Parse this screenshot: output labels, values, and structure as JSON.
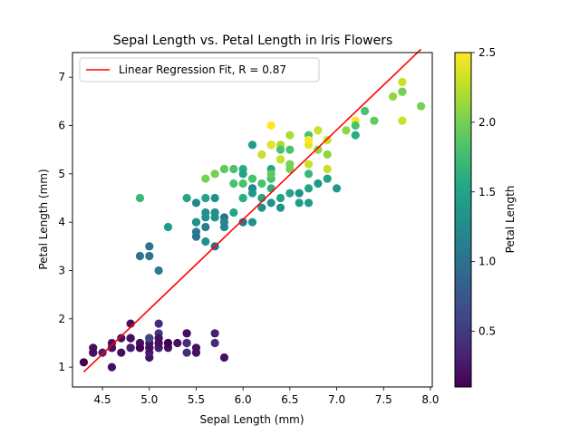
{
  "chart_data": {
    "type": "scatter",
    "title": "Sepal Length vs. Petal Length in Iris Flowers",
    "xlabel": "Sepal Length (mm)",
    "ylabel": "Petal Length (mm)",
    "xlim": [
      4.18,
      8.02
    ],
    "ylim": [
      0.59,
      7.51
    ],
    "xticks": [
      4.5,
      5.0,
      5.5,
      6.0,
      6.5,
      7.0,
      7.5,
      8.0
    ],
    "xtick_labels": [
      "4.5",
      "5.0",
      "5.5",
      "6.0",
      "6.5",
      "7.0",
      "7.5",
      "8.0"
    ],
    "yticks": [
      1,
      2,
      3,
      4,
      5,
      6,
      7
    ],
    "ytick_labels": [
      "1",
      "2",
      "3",
      "4",
      "5",
      "6",
      "7"
    ],
    "grid": false,
    "legend": {
      "placement": "top-left",
      "entries": [
        "Linear Regression Fit, R = 0.87"
      ]
    },
    "regression_line": {
      "name": "Linear Regression Fit, R = 0.87",
      "color": "#ff0000",
      "x": [
        4.3,
        7.9
      ],
      "y": [
        0.9,
        7.58
      ]
    },
    "colorbar": {
      "label": "Petal Length",
      "range": [
        0.1,
        2.5
      ],
      "ticks": [
        0.5,
        1.0,
        1.5,
        2.0,
        2.5
      ],
      "tick_labels": [
        "0.5",
        "1.0",
        "1.5",
        "2.0",
        "2.5"
      ],
      "colormap": "viridis"
    },
    "points": [
      [
        5.1,
        1.4,
        0.2
      ],
      [
        4.9,
        1.4,
        0.2
      ],
      [
        4.7,
        1.3,
        0.2
      ],
      [
        4.6,
        1.5,
        0.2
      ],
      [
        5.0,
        1.4,
        0.2
      ],
      [
        5.4,
        1.7,
        0.4
      ],
      [
        4.6,
        1.4,
        0.3
      ],
      [
        5.0,
        1.5,
        0.2
      ],
      [
        4.4,
        1.4,
        0.2
      ],
      [
        4.9,
        1.5,
        0.1
      ],
      [
        5.4,
        1.5,
        0.2
      ],
      [
        4.8,
        1.6,
        0.2
      ],
      [
        4.8,
        1.4,
        0.1
      ],
      [
        4.3,
        1.1,
        0.1
      ],
      [
        5.8,
        1.2,
        0.2
      ],
      [
        5.7,
        1.5,
        0.4
      ],
      [
        5.4,
        1.3,
        0.4
      ],
      [
        5.1,
        1.4,
        0.3
      ],
      [
        5.7,
        1.7,
        0.3
      ],
      [
        5.1,
        1.5,
        0.3
      ],
      [
        5.4,
        1.7,
        0.2
      ],
      [
        5.1,
        1.5,
        0.4
      ],
      [
        4.6,
        1.0,
        0.2
      ],
      [
        5.1,
        1.7,
        0.5
      ],
      [
        4.8,
        1.9,
        0.2
      ],
      [
        5.0,
        1.6,
        0.2
      ],
      [
        5.0,
        1.6,
        0.4
      ],
      [
        5.2,
        1.5,
        0.2
      ],
      [
        5.2,
        1.4,
        0.2
      ],
      [
        4.7,
        1.6,
        0.2
      ],
      [
        4.8,
        1.6,
        0.2
      ],
      [
        5.4,
        1.5,
        0.4
      ],
      [
        5.2,
        1.5,
        0.1
      ],
      [
        5.5,
        1.4,
        0.2
      ],
      [
        4.9,
        1.5,
        0.2
      ],
      [
        5.0,
        1.2,
        0.2
      ],
      [
        5.5,
        1.3,
        0.2
      ],
      [
        4.9,
        1.4,
        0.1
      ],
      [
        4.4,
        1.3,
        0.2
      ],
      [
        5.1,
        1.5,
        0.2
      ],
      [
        5.0,
        1.3,
        0.3
      ],
      [
        4.5,
        1.3,
        0.3
      ],
      [
        4.4,
        1.3,
        0.2
      ],
      [
        5.0,
        1.6,
        0.6
      ],
      [
        5.1,
        1.9,
        0.4
      ],
      [
        4.8,
        1.4,
        0.3
      ],
      [
        5.1,
        1.6,
        0.2
      ],
      [
        4.6,
        1.4,
        0.2
      ],
      [
        5.3,
        1.5,
        0.2
      ],
      [
        5.0,
        1.4,
        0.2
      ],
      [
        7.0,
        4.7,
        1.4
      ],
      [
        6.4,
        4.5,
        1.5
      ],
      [
        6.9,
        4.9,
        1.5
      ],
      [
        5.5,
        4.0,
        1.3
      ],
      [
        6.5,
        4.6,
        1.5
      ],
      [
        5.7,
        4.5,
        1.3
      ],
      [
        6.3,
        4.7,
        1.6
      ],
      [
        4.9,
        3.3,
        1.0
      ],
      [
        6.6,
        4.6,
        1.3
      ],
      [
        5.2,
        3.9,
        1.4
      ],
      [
        5.0,
        3.5,
        1.0
      ],
      [
        5.9,
        4.2,
        1.5
      ],
      [
        6.0,
        4.0,
        1.0
      ],
      [
        6.1,
        4.7,
        1.4
      ],
      [
        5.6,
        3.6,
        1.3
      ],
      [
        6.7,
        4.4,
        1.4
      ],
      [
        5.6,
        4.5,
        1.5
      ],
      [
        5.8,
        4.1,
        1.0
      ],
      [
        6.2,
        4.5,
        1.5
      ],
      [
        5.6,
        3.9,
        1.1
      ],
      [
        5.9,
        4.8,
        1.8
      ],
      [
        6.1,
        4.0,
        1.3
      ],
      [
        6.3,
        4.9,
        1.5
      ],
      [
        6.1,
        4.7,
        1.2
      ],
      [
        6.4,
        4.3,
        1.3
      ],
      [
        6.6,
        4.4,
        1.4
      ],
      [
        6.8,
        4.8,
        1.4
      ],
      [
        6.7,
        5.0,
        1.7
      ],
      [
        6.0,
        4.5,
        1.5
      ],
      [
        5.7,
        3.5,
        1.0
      ],
      [
        5.5,
        3.8,
        1.1
      ],
      [
        5.5,
        3.7,
        1.0
      ],
      [
        5.8,
        3.9,
        1.2
      ],
      [
        6.0,
        5.1,
        1.6
      ],
      [
        5.4,
        4.5,
        1.5
      ],
      [
        6.0,
        4.5,
        1.6
      ],
      [
        6.7,
        4.7,
        1.5
      ],
      [
        6.3,
        4.4,
        1.3
      ],
      [
        5.6,
        4.1,
        1.3
      ],
      [
        5.5,
        4.0,
        1.3
      ],
      [
        5.5,
        4.4,
        1.2
      ],
      [
        6.1,
        4.6,
        1.4
      ],
      [
        5.8,
        4.0,
        1.2
      ],
      [
        5.0,
        3.3,
        1.0
      ],
      [
        5.6,
        4.2,
        1.3
      ],
      [
        5.7,
        4.2,
        1.2
      ],
      [
        5.7,
        4.2,
        1.3
      ],
      [
        6.2,
        4.3,
        1.3
      ],
      [
        5.1,
        3.0,
        1.1
      ],
      [
        5.7,
        4.1,
        1.3
      ],
      [
        6.3,
        6.0,
        2.5
      ],
      [
        5.8,
        5.1,
        1.9
      ],
      [
        7.1,
        5.9,
        2.1
      ],
      [
        6.3,
        5.6,
        1.8
      ],
      [
        6.5,
        5.8,
        2.2
      ],
      [
        7.6,
        6.6,
        2.1
      ],
      [
        4.9,
        4.5,
        1.7
      ],
      [
        7.3,
        6.3,
        1.8
      ],
      [
        6.7,
        5.8,
        1.8
      ],
      [
        7.2,
        6.1,
        2.5
      ],
      [
        6.5,
        5.1,
        2.0
      ],
      [
        6.4,
        5.3,
        1.9
      ],
      [
        6.8,
        5.5,
        2.1
      ],
      [
        5.7,
        5.0,
        2.0
      ],
      [
        5.8,
        5.1,
        2.4
      ],
      [
        6.4,
        5.3,
        2.3
      ],
      [
        6.5,
        5.5,
        1.8
      ],
      [
        7.7,
        6.7,
        2.2
      ],
      [
        7.7,
        6.9,
        2.3
      ],
      [
        6.0,
        5.0,
        1.5
      ],
      [
        6.9,
        5.7,
        2.3
      ],
      [
        5.6,
        4.9,
        2.0
      ],
      [
        7.7,
        6.7,
        2.0
      ],
      [
        6.3,
        4.9,
        1.8
      ],
      [
        6.7,
        5.7,
        2.1
      ],
      [
        7.2,
        6.0,
        1.8
      ],
      [
        6.2,
        4.8,
        1.8
      ],
      [
        6.1,
        4.9,
        1.8
      ],
      [
        6.4,
        5.6,
        2.1
      ],
      [
        7.2,
        5.8,
        1.6
      ],
      [
        7.4,
        6.1,
        1.9
      ],
      [
        7.9,
        6.4,
        2.0
      ],
      [
        6.4,
        5.6,
        2.2
      ],
      [
        6.3,
        5.1,
        1.5
      ],
      [
        6.1,
        5.6,
        1.4
      ],
      [
        7.7,
        6.1,
        2.3
      ],
      [
        6.3,
        5.6,
        2.4
      ],
      [
        6.4,
        5.5,
        1.8
      ],
      [
        6.0,
        4.8,
        1.8
      ],
      [
        6.9,
        5.4,
        2.1
      ],
      [
        6.7,
        5.6,
        2.4
      ],
      [
        6.9,
        5.1,
        2.3
      ],
      [
        5.8,
        5.1,
        1.9
      ],
      [
        6.8,
        5.9,
        2.3
      ],
      [
        6.7,
        5.7,
        2.5
      ],
      [
        6.7,
        5.2,
        2.3
      ],
      [
        6.3,
        5.0,
        1.9
      ],
      [
        6.5,
        5.2,
        2.0
      ],
      [
        6.2,
        5.4,
        2.3
      ],
      [
        5.9,
        5.1,
        1.8
      ]
    ]
  }
}
